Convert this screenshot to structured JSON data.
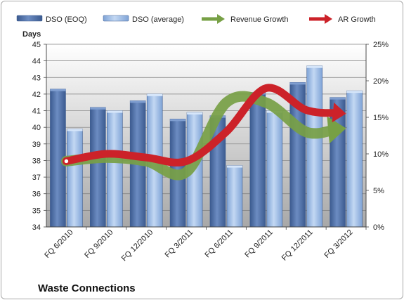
{
  "chart_data": {
    "type": "bar",
    "title": "",
    "company": "Waste Connections",
    "y_left_label": "Days",
    "y_left_range": [
      34,
      45
    ],
    "y_left_ticks": [
      "34",
      "35",
      "36",
      "37",
      "38",
      "39",
      "40",
      "41",
      "42",
      "43",
      "44",
      "45"
    ],
    "y_right_range": [
      0,
      25
    ],
    "y_right_ticks": [
      "0%",
      "5%",
      "10%",
      "15%",
      "20%",
      "25%"
    ],
    "categories": [
      "FQ 6/2010",
      "FQ 9/2010",
      "FQ 12/2010",
      "FQ 3/2011",
      "FQ 6/2011",
      "FQ 9/2011",
      "FQ 12/2011",
      "FQ 3/2012"
    ],
    "series": [
      {
        "name": "DSO (EOQ)",
        "kind": "bar",
        "axis": "left",
        "color": "#4f6fa6",
        "values": [
          42.3,
          41.2,
          41.6,
          40.5,
          40.7,
          42.1,
          42.7,
          41.8
        ]
      },
      {
        "name": "DSO (average)",
        "kind": "bar",
        "axis": "left",
        "color": "#9fbde8",
        "values": [
          39.9,
          41.0,
          42.0,
          40.9,
          37.7,
          41.0,
          43.7,
          42.2
        ]
      },
      {
        "name": "Revenue Growth",
        "kind": "arrow-line",
        "axis": "right",
        "color": "#77a045",
        "values": [
          9.0,
          9.5,
          9.0,
          7.5,
          17.0,
          17.0,
          13.0,
          13.5
        ]
      },
      {
        "name": "AR Growth",
        "kind": "arrow-line",
        "axis": "right",
        "color": "#cc2229",
        "values": [
          9.0,
          10.0,
          9.5,
          9.0,
          13.0,
          19.0,
          16.0,
          15.5
        ]
      }
    ],
    "grid": true,
    "legend_position": "top"
  }
}
